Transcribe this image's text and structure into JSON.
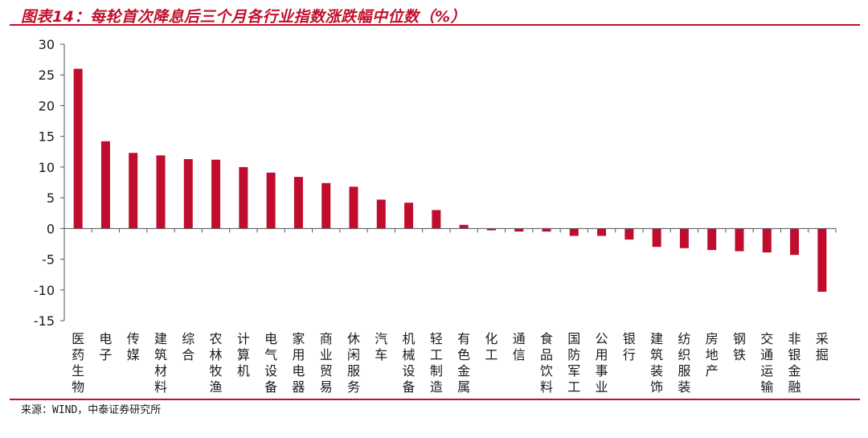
{
  "header": {
    "title": "图表14：每轮首次降息后三个月各行业指数涨跌幅中位数（%）"
  },
  "footer": {
    "source": "来源：WIND，中泰证券研究所"
  },
  "colors": {
    "bar": "#c00d2e",
    "accent": "#c0102a"
  },
  "chart_data": {
    "type": "bar",
    "title": "图表14：每轮首次降息后三个月各行业指数涨跌幅中位数（%）",
    "xlabel": "",
    "ylabel": "",
    "ylim": [
      -15,
      30
    ],
    "yticks": [
      30,
      25,
      20,
      15,
      10,
      5,
      0,
      -5,
      -10,
      -15
    ],
    "grid": false,
    "categories": [
      "医药生物",
      "电子",
      "传媒",
      "建筑材料",
      "综合",
      "农林牧渔",
      "计算机",
      "电气设备",
      "家用电器",
      "商业贸易",
      "休闲服务",
      "汽车",
      "机械设备",
      "轻工制造",
      "有色金属",
      "化工",
      "通信",
      "食品饮料",
      "国防军工",
      "公用事业",
      "银行",
      "建筑装饰",
      "纺织服装",
      "房地产",
      "钢铁",
      "交通运输",
      "非银金融",
      "采掘"
    ],
    "values": [
      26.0,
      14.2,
      12.3,
      11.9,
      11.3,
      11.2,
      10.0,
      9.1,
      8.4,
      7.4,
      6.8,
      4.7,
      4.2,
      3.0,
      0.6,
      -0.3,
      -0.5,
      -0.5,
      -1.2,
      -1.2,
      -1.8,
      -3.0,
      -3.2,
      -3.5,
      -3.7,
      -3.9,
      -4.3,
      -10.3
    ]
  }
}
